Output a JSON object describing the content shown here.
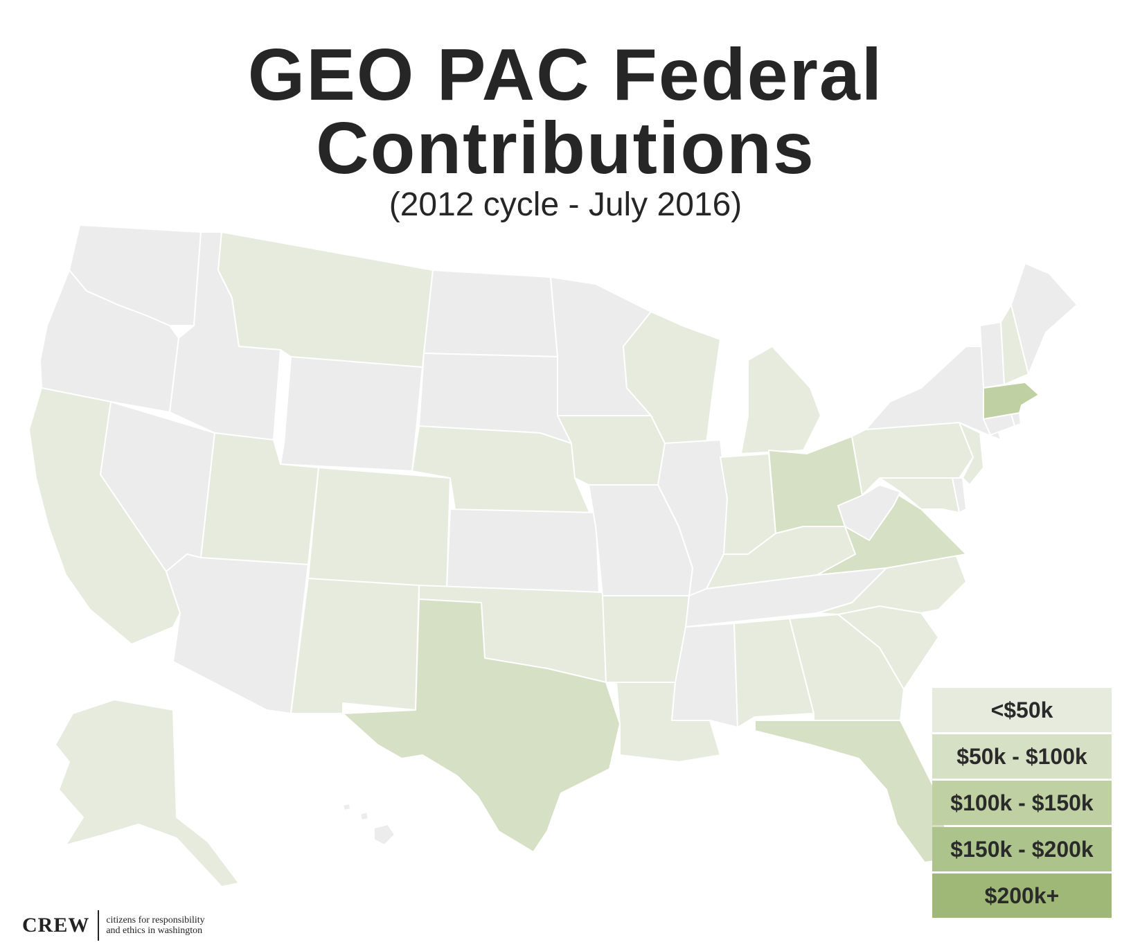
{
  "title": {
    "line1": "GEO PAC Federal",
    "line2": "Contributions"
  },
  "subtitle": "(2012 cycle - July 2016)",
  "colors": {
    "no_data": "#ececec",
    "under_50k": "#e6ebdd",
    "50k_100k": "#d6e0c4",
    "100k_150k": "#bfd0a2",
    "150k_200k": "#adc38c",
    "200k_plus": "#9fb877",
    "border": "#ffffff"
  },
  "legend": {
    "items": [
      {
        "label": "<$50k",
        "color": "#e6ebdd"
      },
      {
        "label": "$50k - $100k",
        "color": "#d6e0c4"
      },
      {
        "label": "$100k - $150k",
        "color": "#bfd0a2"
      },
      {
        "label": "$150k - $200k",
        "color": "#adc38c"
      },
      {
        "label": "$200k+",
        "color": "#9fb877"
      }
    ]
  },
  "map_data": {
    "bins": [
      "none",
      "<$50k",
      "$50k - $100k",
      "$100k - $150k",
      "$150k - $200k",
      "$200k+"
    ],
    "states": {
      "WA": "none",
      "OR": "none",
      "ID": "none",
      "NV": "none",
      "AZ": "none",
      "WY": "none",
      "ND": "none",
      "SD": "none",
      "KS": "none",
      "MN": "none",
      "MO": "none",
      "IL": "none",
      "MS": "none",
      "TN": "none",
      "WV": "none",
      "NY": "none",
      "VT": "none",
      "ME": "none",
      "HI": "none",
      "CA": "<$50k",
      "MT": "<$50k",
      "UT": "<$50k",
      "CO": "<$50k",
      "NM": "<$50k",
      "NE": "<$50k",
      "OK": "<$50k",
      "IA": "<$50k",
      "AR": "<$50k",
      "LA": "<$50k",
      "WI": "<$50k",
      "MI": "<$50k",
      "IN": "<$50k",
      "KY": "<$50k",
      "AL": "<$50k",
      "GA": "<$50k",
      "SC": "<$50k",
      "NC": "<$50k",
      "PA": "<$50k",
      "NJ": "<$50k",
      "MD": "<$50k",
      "NH": "<$50k",
      "AK": "<$50k",
      "TX": "$50k - $100k",
      "OH": "$50k - $100k",
      "VA": "$50k - $100k",
      "FL": "$50k - $100k",
      "MA": "$100k - $150k"
    }
  },
  "logo": {
    "mark": "CREW",
    "tagline_line1": "citizens for responsibility",
    "tagline_line2": "and ethics in washington"
  }
}
